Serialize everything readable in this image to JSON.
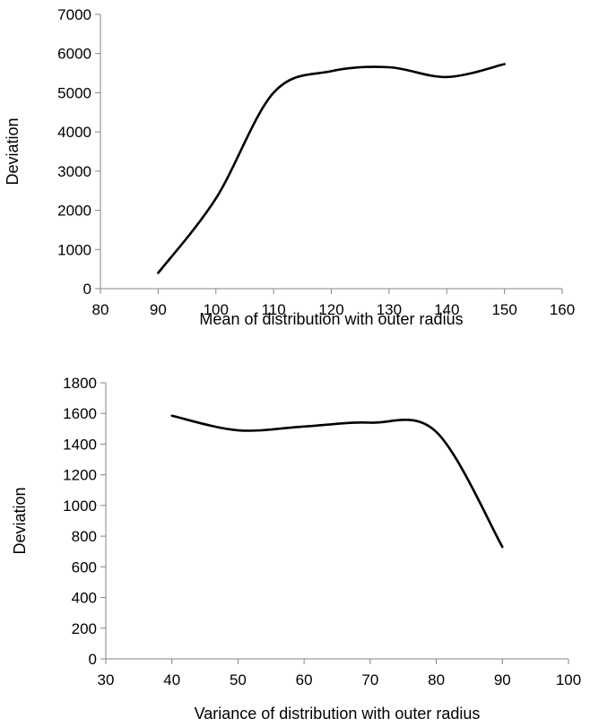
{
  "chart_data": [
    {
      "type": "line",
      "title": "",
      "xlabel": "Mean of distribution with outer radius",
      "ylabel": "Deviation",
      "xlim": [
        80,
        160
      ],
      "ylim": [
        0,
        7000
      ],
      "xticks": [
        80,
        90,
        100,
        110,
        120,
        130,
        140,
        150,
        160
      ],
      "yticks": [
        0,
        1000,
        2000,
        3000,
        4000,
        5000,
        6000,
        7000
      ],
      "grid": false,
      "legend": "none",
      "line_style": "smooth",
      "series": [
        {
          "color": "#000000",
          "x": [
            90,
            100,
            110,
            120,
            130,
            140,
            150
          ],
          "y": [
            400,
            2300,
            5000,
            5550,
            5650,
            5400,
            5730
          ]
        }
      ]
    },
    {
      "type": "line",
      "title": "",
      "xlabel": "Variance of distribution with outer radius",
      "ylabel": "Deviation",
      "xlim": [
        30,
        100
      ],
      "ylim": [
        0,
        1800
      ],
      "xticks": [
        30,
        40,
        50,
        60,
        70,
        80,
        90,
        100
      ],
      "yticks": [
        0,
        200,
        400,
        600,
        800,
        1000,
        1200,
        1400,
        1600,
        1800
      ],
      "grid": false,
      "legend": "none",
      "line_style": "smooth",
      "series": [
        {
          "color": "#000000",
          "x": [
            40,
            50,
            60,
            70,
            80,
            90
          ],
          "y": [
            1585,
            1490,
            1515,
            1540,
            1480,
            730
          ]
        }
      ]
    }
  ]
}
